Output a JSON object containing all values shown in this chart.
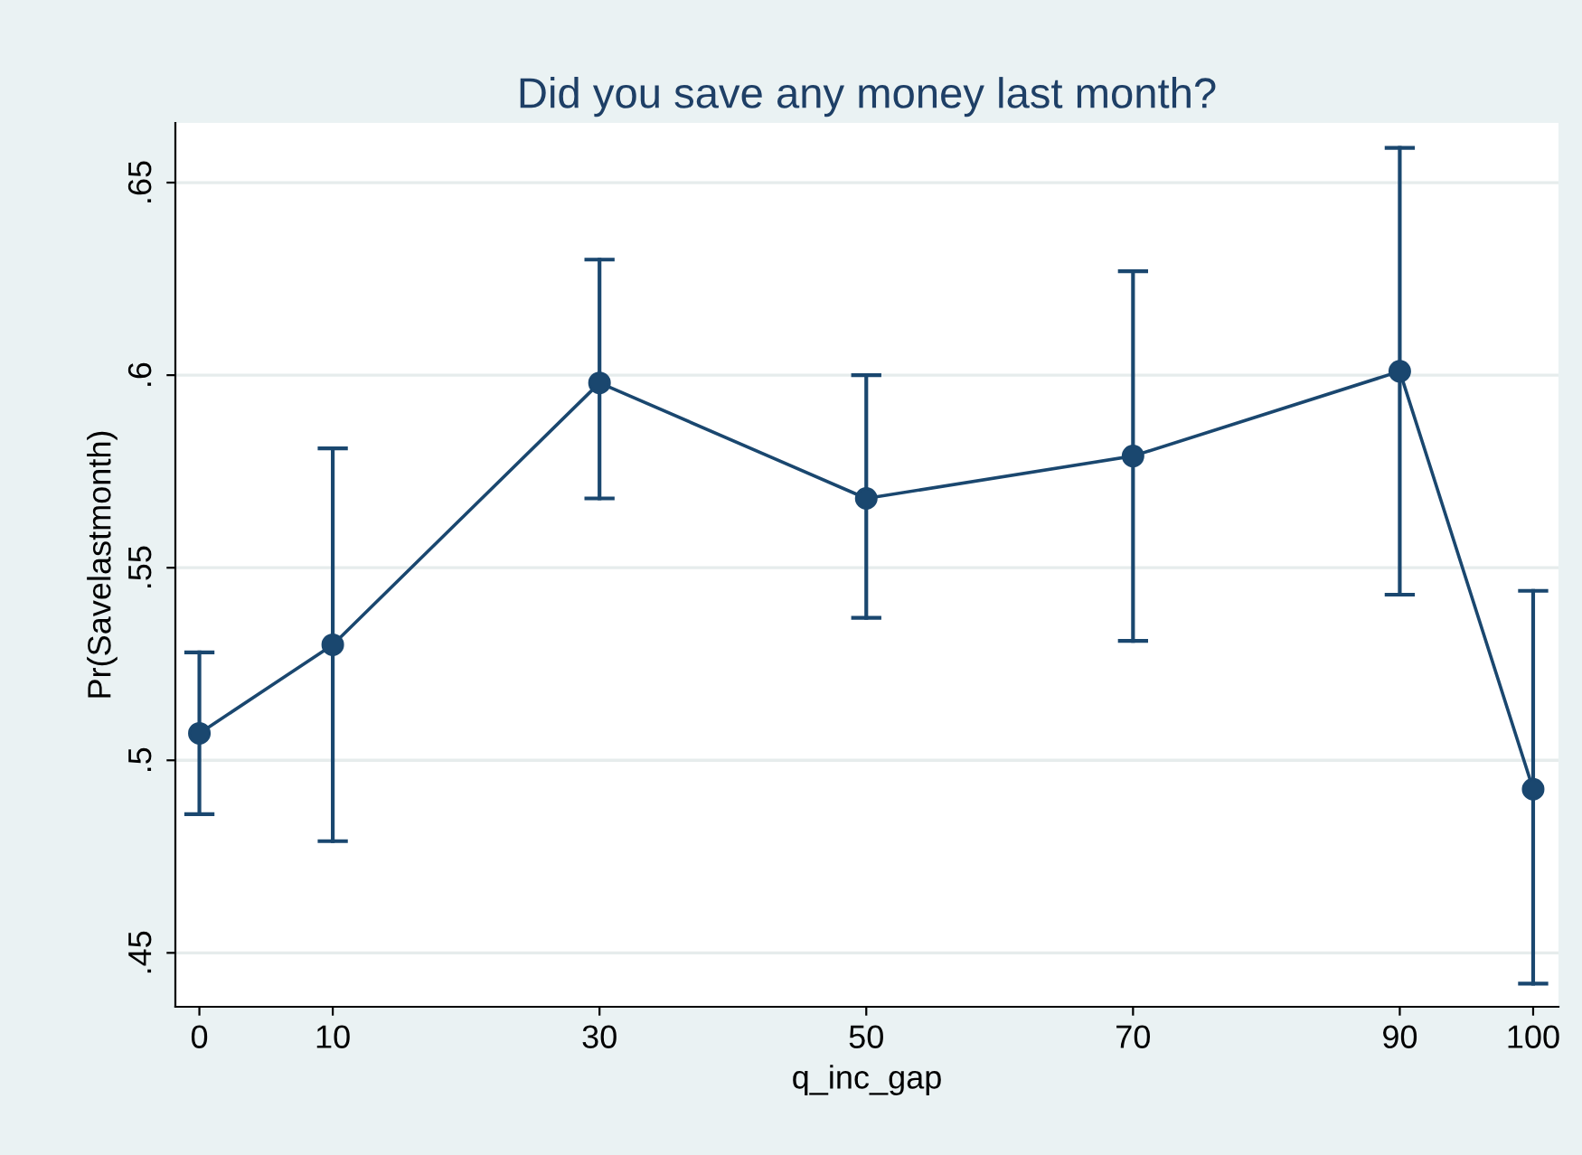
{
  "chart_data": {
    "type": "line",
    "title": "Did you save any money last month?",
    "xlabel": "q_inc_gap",
    "ylabel": "Pr(Savelastmonth)",
    "x": [
      0,
      10,
      30,
      50,
      70,
      90,
      100
    ],
    "series": [
      {
        "color": "#1a476f",
        "values": [
          0.507,
          0.53,
          0.598,
          0.568,
          0.579,
          0.601,
          0.4925
        ],
        "errors": [
          [
            0.486,
            0.528
          ],
          [
            0.479,
            0.581
          ],
          [
            0.568,
            0.63
          ],
          [
            0.537,
            0.6
          ],
          [
            0.531,
            0.627
          ],
          [
            0.543,
            0.659
          ],
          [
            0.442,
            0.544
          ]
        ]
      }
    ],
    "marker": "circle",
    "line_style": "solid",
    "grid": "y",
    "xlim": [
      -1.8,
      101.9
    ],
    "xticks": [
      0,
      10,
      30,
      50,
      70,
      90,
      100
    ],
    "ylim": [
      0.436,
      0.6655
    ],
    "yticks": [
      {
        "value": 0.45,
        "label": ".45"
      },
      {
        "value": 0.5,
        "label": ".5"
      },
      {
        "value": 0.55,
        "label": ".55"
      },
      {
        "value": 0.6,
        "label": ".6"
      },
      {
        "value": 0.65,
        "label": ".65"
      }
    ]
  }
}
